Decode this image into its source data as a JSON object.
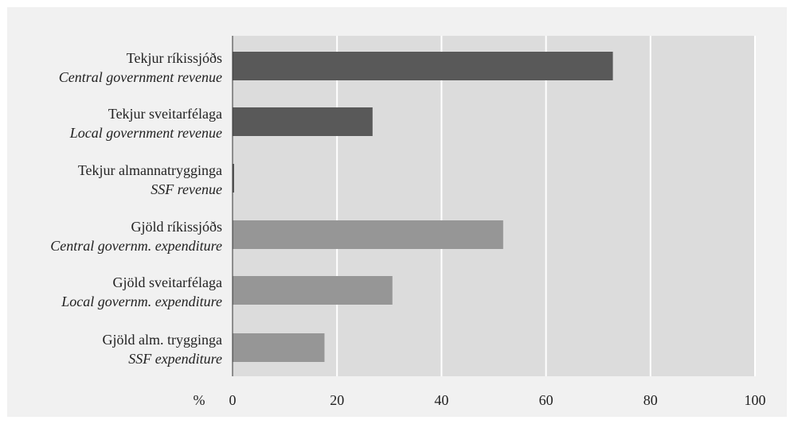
{
  "chart_data": {
    "type": "bar",
    "orientation": "horizontal",
    "categories": [
      {
        "label": "Tekjur ríkissjóðs",
        "sublabel": "Central government revenue"
      },
      {
        "label": "Tekjur sveitarfélaga",
        "sublabel": "Local government revenue"
      },
      {
        "label": "Tekjur almannatrygginga",
        "sublabel": "SSF revenue"
      },
      {
        "label": "Gjöld ríkissjóðs",
        "sublabel": "Central governm. expenditure"
      },
      {
        "label": "Gjöld sveitarfélaga",
        "sublabel": "Local governm. expenditure"
      },
      {
        "label": "Gjöld alm. trygginga",
        "sublabel": "SSF expenditure"
      }
    ],
    "values": [
      72.8,
      26.8,
      0.3,
      51.8,
      30.6,
      17.6
    ],
    "bar_colors": [
      "#595959",
      "#595959",
      "#595959",
      "#969696",
      "#969696",
      "#969696"
    ],
    "xlim": [
      0,
      100
    ],
    "xticks": [
      0,
      20,
      40,
      60,
      80,
      100
    ],
    "xunit": "%",
    "grid": true,
    "plot_background": "#dcdcdc",
    "frame_background": "#f1f1f1",
    "grid_color": "#ffffff"
  }
}
